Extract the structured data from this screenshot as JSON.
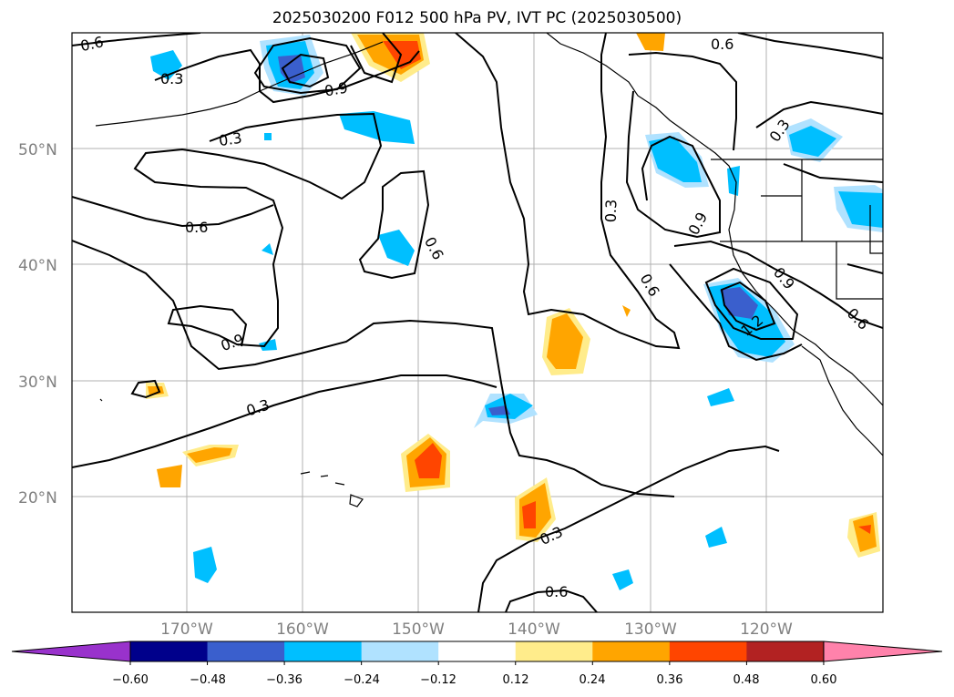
{
  "title": "2025030200 F012 500 hPa PV, IVT PC (2025030500)",
  "lat_labels": [
    "50°N",
    "40°N",
    "30°N",
    "20°N"
  ],
  "lon_labels": [
    "170°W",
    "160°W",
    "150°W",
    "140°W",
    "130°W",
    "120°W"
  ],
  "contour_labels": [
    "0.6",
    "0.3",
    "0.9",
    "0.3",
    "0.6",
    "0.9",
    "0.6",
    "0.3",
    "0.3",
    "0.9",
    "0.6",
    "0.3",
    "0.6",
    "0.9",
    "1.2",
    "0.6",
    "0.3",
    "0.6",
    "0.3",
    "0.6"
  ],
  "colorbar": {
    "ticks": [
      "−0.60",
      "−0.48",
      "−0.36",
      "−0.24",
      "−0.12",
      "0.12",
      "0.24",
      "0.36",
      "0.48",
      "0.60"
    ],
    "colors": [
      "#9932CC",
      "#00008B",
      "#3A5FCD",
      "#00BFFF",
      "#B0E2FF",
      "#FFFFFF",
      "#FFEC8B",
      "#FFA500",
      "#FF4500",
      "#B22222",
      "#FF82AB"
    ]
  }
}
